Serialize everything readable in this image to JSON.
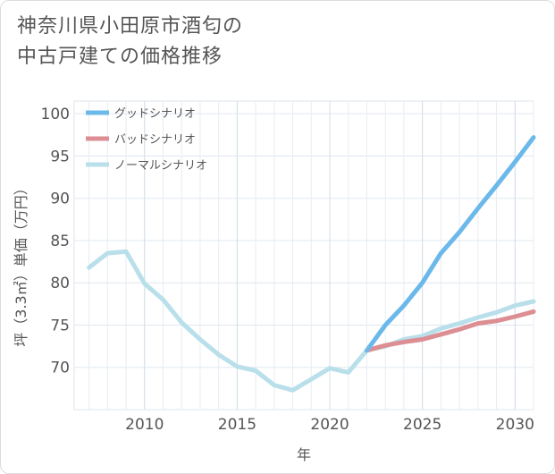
{
  "page": {
    "title_line1": "神奈川県小田原市酒匂の",
    "title_line2": "中古戸建ての価格推移"
  },
  "chart_data": {
    "type": "line",
    "xlabel": "年",
    "ylabel": "坪（3.3㎡）単価（万円）",
    "xlim": [
      2006.2,
      2031
    ],
    "ylim": [
      65,
      101.5
    ],
    "x_ticks": [
      2010,
      2015,
      2020,
      2025,
      2030
    ],
    "y_ticks": [
      70,
      75,
      80,
      85,
      90,
      95,
      100
    ],
    "grid": true,
    "legend_position": "top-left",
    "series": [
      {
        "name": "グッドシナリオ",
        "color": "#6bb8ea",
        "x": [
          2022,
          2023,
          2024,
          2025,
          2026,
          2027,
          2028,
          2029,
          2030,
          2031
        ],
        "y": [
          72.0,
          75.0,
          77.3,
          80.0,
          83.5,
          86.0,
          88.8,
          91.5,
          94.3,
          97.2
        ]
      },
      {
        "name": "バッドシナリオ",
        "color": "#dc8e93",
        "x": [
          2022,
          2023,
          2024,
          2025,
          2026,
          2027,
          2028,
          2029,
          2030,
          2031
        ],
        "y": [
          72.0,
          72.6,
          73.0,
          73.3,
          73.9,
          74.5,
          75.2,
          75.5,
          76.0,
          76.6
        ]
      },
      {
        "name": "ノーマルシナリオ",
        "color": "#b9dfea",
        "x": [
          2007,
          2008,
          2009,
          2010,
          2011,
          2012,
          2013,
          2014,
          2015,
          2016,
          2017,
          2018,
          2019,
          2020,
          2021,
          2022,
          2023,
          2024,
          2025,
          2026,
          2027,
          2028,
          2029,
          2030,
          2031
        ],
        "y": [
          81.8,
          83.5,
          83.7,
          79.9,
          78.0,
          75.3,
          73.3,
          71.5,
          70.1,
          69.6,
          67.9,
          67.3,
          68.6,
          69.9,
          69.4,
          72.0,
          72.5,
          73.3,
          73.7,
          74.6,
          75.2,
          75.9,
          76.5,
          77.3,
          77.8
        ]
      }
    ]
  }
}
